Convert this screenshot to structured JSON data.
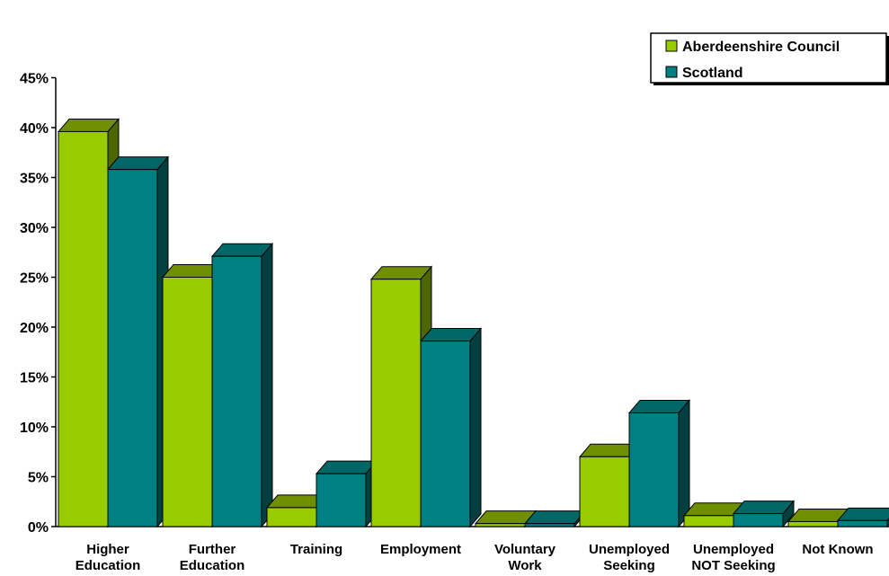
{
  "chart_data": {
    "type": "bar",
    "title": "",
    "xlabel": "",
    "ylabel": "",
    "ylim": [
      0,
      45
    ],
    "y_ticks": [
      "0%",
      "5%",
      "10%",
      "15%",
      "20%",
      "25%",
      "30%",
      "35%",
      "40%",
      "45%"
    ],
    "categories": [
      [
        "Higher",
        "Education"
      ],
      [
        "Further",
        "Education"
      ],
      [
        "Training"
      ],
      [
        "Employment"
      ],
      [
        "Voluntary",
        "Work"
      ],
      [
        "Unemployed",
        "Seeking"
      ],
      [
        "Unemployed",
        "NOT Seeking"
      ],
      [
        "Not Known"
      ]
    ],
    "series": [
      {
        "name": "Aberdeenshire Council",
        "color": "#99cc00",
        "top_color": "#6f8f00",
        "side_color": "#4d6600",
        "values": [
          39.6,
          25.0,
          1.9,
          24.8,
          0.3,
          7.0,
          1.1,
          0.5
        ]
      },
      {
        "name": "Scotland",
        "color": "#008080",
        "top_color": "#006666",
        "side_color": "#004040",
        "values": [
          35.8,
          27.1,
          5.3,
          18.6,
          0.3,
          11.4,
          1.3,
          0.6
        ]
      }
    ],
    "legend_position": "top-right",
    "grid": false,
    "style": "3d-bar"
  }
}
